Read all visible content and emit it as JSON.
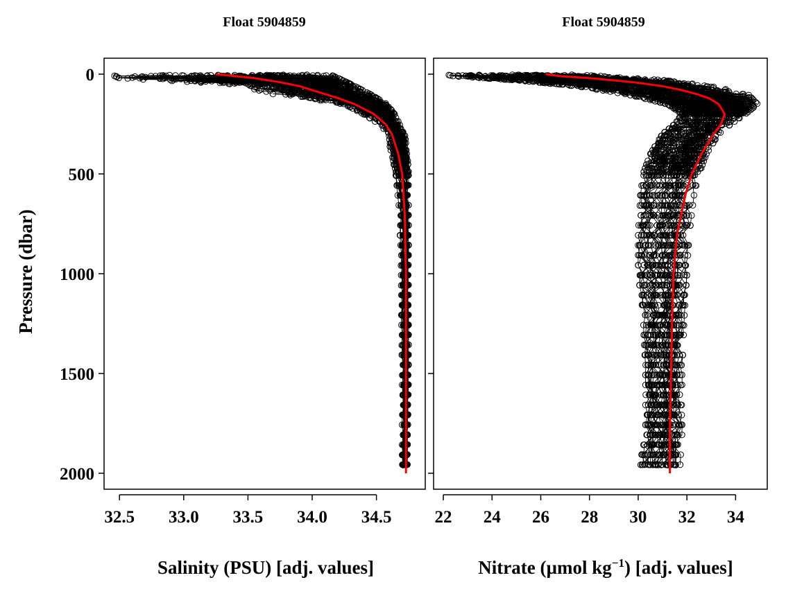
{
  "y_axis": {
    "label": "Pressure (dbar)",
    "ticks": [
      0,
      500,
      1000,
      1500,
      2000
    ],
    "range": [
      -80,
      2080
    ],
    "reversed": true
  },
  "panels": [
    {
      "title": "Float 5904859",
      "xlabel": "Salinity (PSU)  [adj. values]",
      "xlim": [
        32.38,
        34.88
      ],
      "xticks": [
        "32.5",
        "33.0",
        "33.5",
        "34.0",
        "34.5"
      ],
      "y_tick_labels_shown": true
    },
    {
      "title": "Float 5904859",
      "xlabel_parts": {
        "before": "Nitrate (µmol kg",
        "sup": "−1",
        "after": ")  [adj. values]"
      },
      "xlim": [
        21.6,
        35.3
      ],
      "xticks": [
        "22",
        "24",
        "26",
        "28",
        "30",
        "32",
        "34"
      ],
      "y_tick_labels_shown": false
    }
  ],
  "chart_data": [
    {
      "type": "scatter",
      "title": "Float 5904859",
      "xlabel": "Salinity (PSU)  [adj. values]",
      "ylabel": "Pressure (dbar)",
      "xlim": [
        32.38,
        34.88
      ],
      "ylim": [
        2080,
        -80
      ],
      "series": [
        {
          "style": "black open circles connected by thin lines (many profiles)",
          "color": "#000000",
          "envelope_left": {
            "y": [
              5,
              20,
              50,
              100,
              150,
              200,
              250,
              300,
              400,
              500,
              700,
              1000,
              1500,
              2000
            ],
            "x": [
              32.45,
              32.5,
              33.4,
              33.7,
              34.25,
              34.4,
              34.52,
              34.58,
              34.62,
              34.65,
              34.68,
              34.69,
              34.7,
              34.7
            ]
          },
          "envelope_right": {
            "y": [
              5,
              20,
              50,
              100,
              150,
              200,
              250,
              300,
              400,
              500,
              700,
              1000,
              1500,
              2000
            ],
            "x": [
              34.15,
              34.2,
              34.3,
              34.45,
              34.58,
              34.64,
              34.68,
              34.72,
              34.74,
              34.75,
              34.75,
              34.75,
              34.75,
              34.74
            ]
          }
        },
        {
          "style": "mean profile line",
          "color": "#ff0000",
          "y": [
            0,
            10,
            20,
            40,
            60,
            80,
            100,
            120,
            150,
            200,
            250,
            300,
            400,
            500,
            700,
            1000,
            1500,
            2000
          ],
          "x": [
            33.25,
            33.4,
            33.55,
            33.75,
            33.9,
            34.0,
            34.1,
            34.2,
            34.33,
            34.48,
            34.57,
            34.62,
            34.67,
            34.7,
            34.72,
            34.73,
            34.73,
            34.73
          ]
        }
      ]
    },
    {
      "type": "scatter",
      "title": "Float 5904859",
      "xlabel": "Nitrate (µmol kg−1)  [adj. values]",
      "ylabel": "Pressure (dbar)",
      "xlim": [
        21.6,
        35.3
      ],
      "ylim": [
        2080,
        -80
      ],
      "series": [
        {
          "style": "black open circles connected by thin lines (many profiles)",
          "color": "#000000",
          "envelope_left": {
            "y": [
              0,
              10,
              30,
              60,
              100,
              150,
              200,
              250,
              300,
              400,
              500,
              600,
              800,
              1000,
              1200,
              1500,
              1800,
              2000
            ],
            "x": [
              22.1,
              22.4,
              25.0,
              27.5,
              29.5,
              31.2,
              31.8,
              31.5,
              31.0,
              30.5,
              30.2,
              30.1,
              30.0,
              30.0,
              30.2,
              30.3,
              30.3,
              30.0
            ]
          },
          "envelope_right": {
            "y": [
              0,
              10,
              30,
              60,
              100,
              150,
              200,
              250,
              300,
              400,
              500,
              600,
              800,
              1000,
              1200,
              1500,
              1800,
              2000
            ],
            "x": [
              27.0,
              28.5,
              31.0,
              33.0,
              34.5,
              34.9,
              34.4,
              33.8,
              33.3,
              32.8,
              32.5,
              32.3,
              32.1,
              32.0,
              31.9,
              31.8,
              31.8,
              31.7
            ]
          }
        },
        {
          "style": "mean profile line",
          "color": "#ff0000",
          "y": [
            0,
            10,
            20,
            40,
            60,
            80,
            100,
            120,
            150,
            200,
            250,
            300,
            400,
            500,
            600,
            800,
            1000,
            1200,
            1500,
            1800,
            2000
          ],
          "x": [
            26.2,
            26.8,
            28.0,
            29.8,
            31.0,
            31.8,
            32.4,
            32.9,
            33.3,
            33.55,
            33.4,
            33.1,
            32.6,
            32.2,
            31.95,
            31.6,
            31.45,
            31.4,
            31.35,
            31.3,
            31.3
          ]
        }
      ]
    }
  ]
}
